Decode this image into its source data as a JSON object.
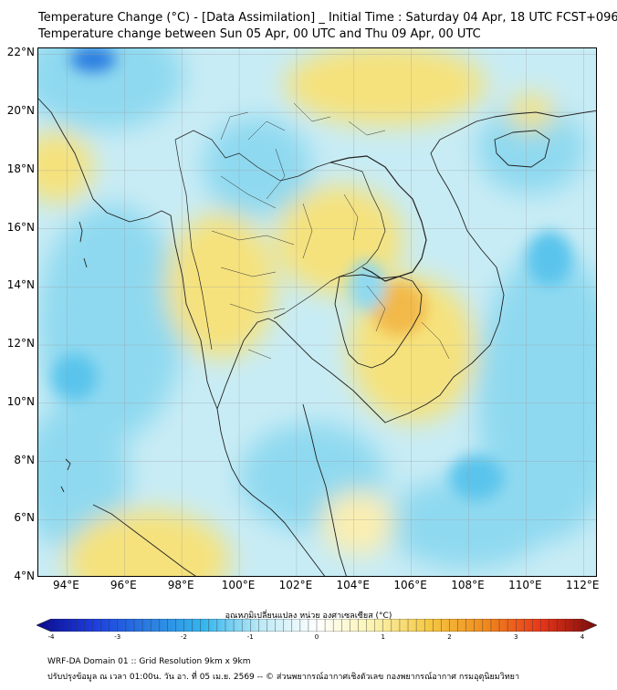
{
  "title_line1": "Temperature Change (°C) - [Data Assimilation] _ Initial Time : Saturday 04 Apr, 18 UTC FCST+096",
  "title_line2": "Temperature change between Sun 05 Apr, 00 UTC and Thu 09 Apr, 00 UTC",
  "map": {
    "lon_range": [
      93,
      112.5
    ],
    "lat_range": [
      4,
      22.2
    ],
    "lat_ticks": [
      "22°N",
      "20°N",
      "18°N",
      "16°N",
      "14°N",
      "12°N",
      "10°N",
      "8°N",
      "6°N",
      "4°N"
    ],
    "lat_values": [
      22,
      20,
      18,
      16,
      14,
      12,
      10,
      8,
      6,
      4
    ],
    "lon_ticks": [
      "94°E",
      "96°E",
      "98°E",
      "100°E",
      "102°E",
      "104°E",
      "106°E",
      "108°E",
      "110°E",
      "112°E"
    ],
    "lon_values": [
      94,
      96,
      98,
      100,
      102,
      104,
      106,
      108,
      110,
      112
    ],
    "base_color": "#c8ecf5",
    "warm_color_light": "#fbeeb0",
    "warm_color": "#f6e27c",
    "warm_color_strong": "#f2b94a",
    "cool_color": "#8fd9f0",
    "cool_color_strong": "#5ac4ec",
    "deep_blue": "#2a7de0",
    "border_color": "#222222"
  },
  "colorbar": {
    "title": "อุณหภูมิเปลี่ยนแปลง หน่วย องศาเซลเซียส (°C)",
    "tick_labels": [
      "-4",
      "-3",
      "-2",
      "-1",
      "0",
      "1",
      "2",
      "3",
      "4"
    ],
    "tick_values": [
      -4,
      -3,
      -2,
      -1,
      0,
      1,
      2,
      3,
      4
    ],
    "range": [
      -4,
      4
    ],
    "colors": [
      "#0a0a8c",
      "#1c3ce0",
      "#2a7de0",
      "#35b7ee",
      "#bde9f6",
      "#ffffff",
      "#fbf3b0",
      "#f5c842",
      "#f08a1e",
      "#e8361a",
      "#7a0a0a"
    ]
  },
  "footer_line1": "WRF-DA Domain 01 :: Grid Resolution 9km x 9km",
  "footer_line2": "ปรับปรุงข้อมูล ณ เวลา 01:00น. วัน อา. ที่ 05 เม.ย. 2569 -- © ส่วนพยากรณ์อากาศเชิงตัวเลข กองพยากรณ์อากาศ กรมอุตุนิยมวิทยา"
}
